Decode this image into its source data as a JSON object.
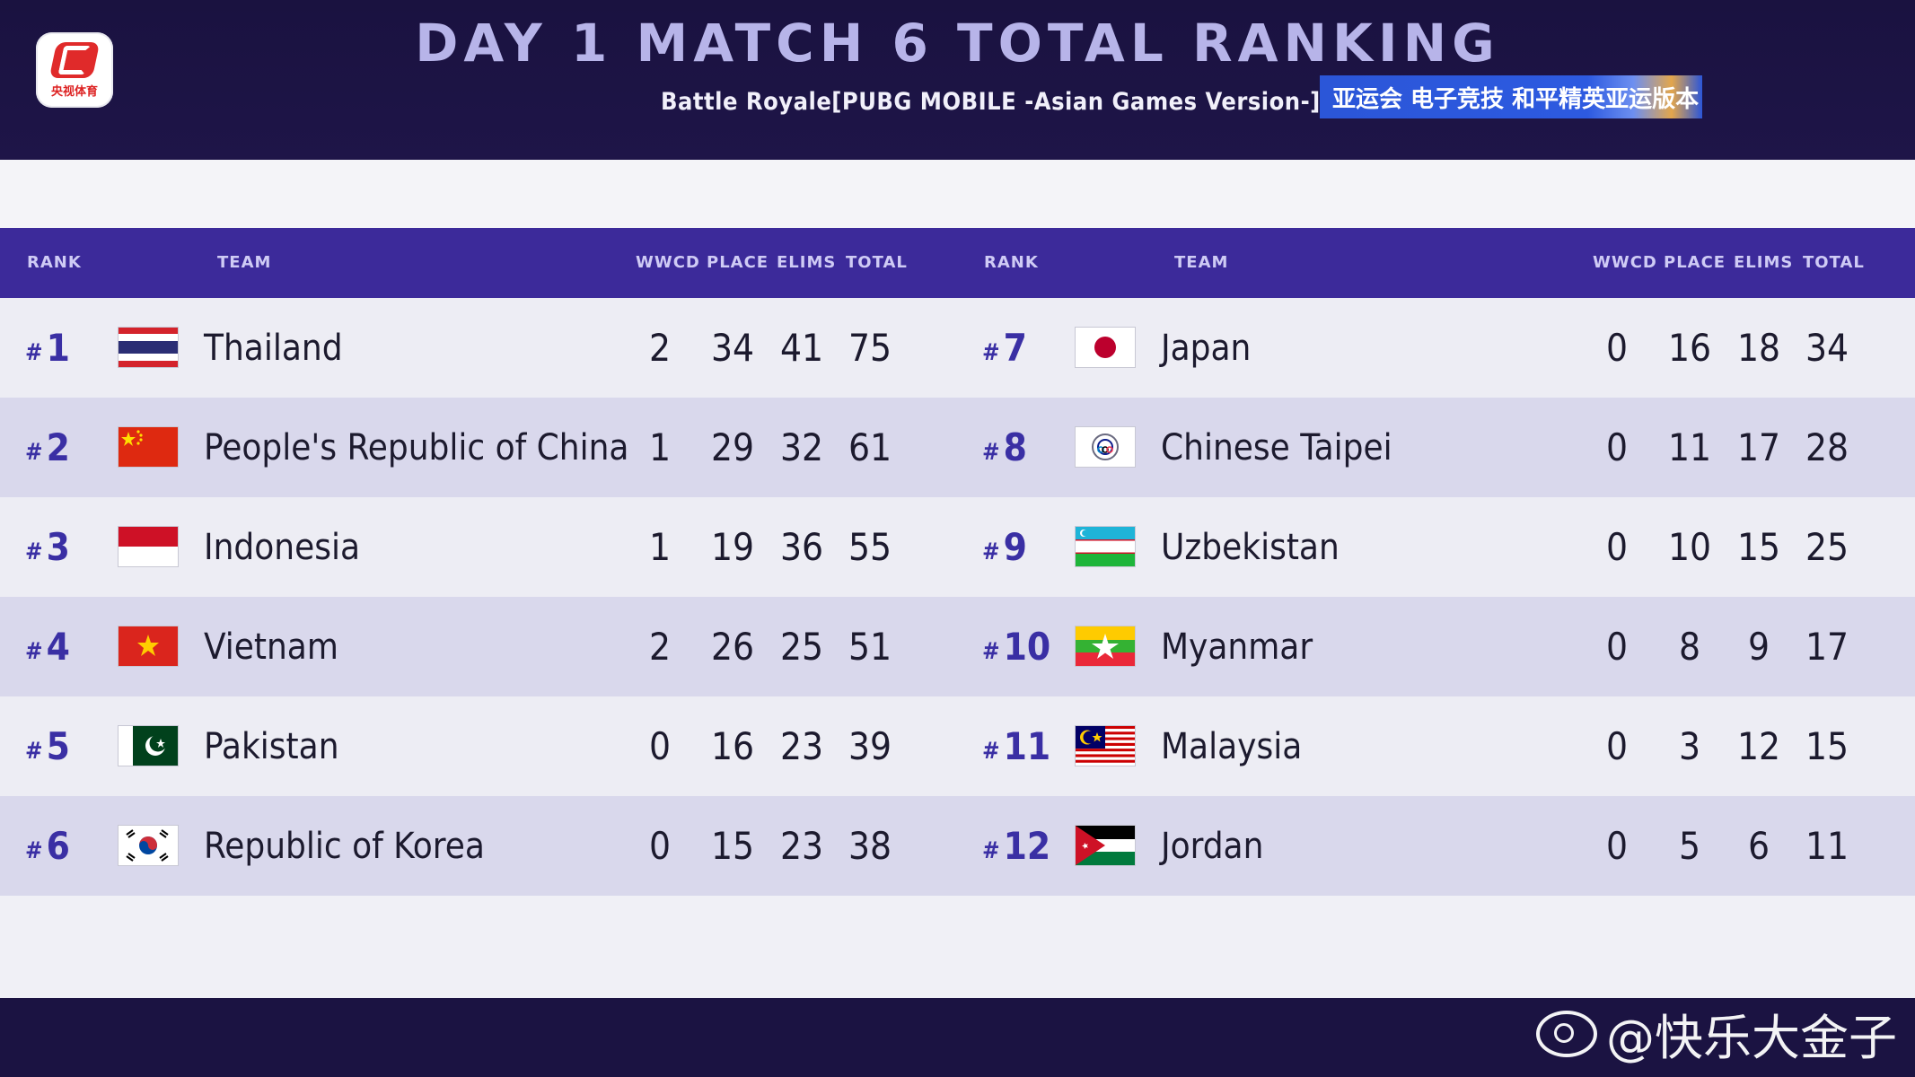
{
  "header": {
    "logo_text": "央视体育",
    "title": "DAY 1 MATCH 6 TOTAL RANKING",
    "subtitle": "Battle Royale[PUBG MOBILE -Asian Games Version-]",
    "banner": "亚运会 电子竞技 和平精英亚运版本"
  },
  "columns": {
    "rank": "RANK",
    "team": "TEAM",
    "wwcd": "WWCD",
    "place": "PLACE",
    "elims": "ELIMS",
    "total": "TOTAL"
  },
  "rank_prefix": "#",
  "left": [
    {
      "rank": "1",
      "team": "Thailand",
      "flag": "thailand-flag-icon",
      "wwcd": "2",
      "place": "34",
      "elims": "41",
      "total": "75"
    },
    {
      "rank": "2",
      "team": "People's Republic of China",
      "flag": "china-flag-icon",
      "wwcd": "1",
      "place": "29",
      "elims": "32",
      "total": "61"
    },
    {
      "rank": "3",
      "team": "Indonesia",
      "flag": "indonesia-flag-icon",
      "wwcd": "1",
      "place": "19",
      "elims": "36",
      "total": "55"
    },
    {
      "rank": "4",
      "team": "Vietnam",
      "flag": "vietnam-flag-icon",
      "wwcd": "2",
      "place": "26",
      "elims": "25",
      "total": "51"
    },
    {
      "rank": "5",
      "team": "Pakistan",
      "flag": "pakistan-flag-icon",
      "wwcd": "0",
      "place": "16",
      "elims": "23",
      "total": "39"
    },
    {
      "rank": "6",
      "team": "Republic of Korea",
      "flag": "korea-flag-icon",
      "wwcd": "0",
      "place": "15",
      "elims": "23",
      "total": "38"
    }
  ],
  "right": [
    {
      "rank": "7",
      "team": "Japan",
      "flag": "japan-flag-icon",
      "wwcd": "0",
      "place": "16",
      "elims": "18",
      "total": "34"
    },
    {
      "rank": "8",
      "team": "Chinese Taipei",
      "flag": "chinese-taipei-flag-icon",
      "wwcd": "0",
      "place": "11",
      "elims": "17",
      "total": "28"
    },
    {
      "rank": "9",
      "team": "Uzbekistan",
      "flag": "uzbekistan-flag-icon",
      "wwcd": "0",
      "place": "10",
      "elims": "15",
      "total": "25"
    },
    {
      "rank": "10",
      "team": "Myanmar",
      "flag": "myanmar-flag-icon",
      "wwcd": "0",
      "place": "8",
      "elims": "9",
      "total": "17"
    },
    {
      "rank": "11",
      "team": "Malaysia",
      "flag": "malaysia-flag-icon",
      "wwcd": "0",
      "place": "3",
      "elims": "12",
      "total": "15"
    },
    {
      "rank": "12",
      "team": "Jordan",
      "flag": "jordan-flag-icon",
      "wwcd": "0",
      "place": "5",
      "elims": "6",
      "total": "11"
    }
  ],
  "watermark": "@快乐大金子",
  "colors": {
    "header_bg": "#1b1342",
    "column_header_bg": "#3c2a9a",
    "rank_color": "#3a2fa4",
    "row_light": "#ededf4",
    "row_dark": "#d9d8ec"
  }
}
